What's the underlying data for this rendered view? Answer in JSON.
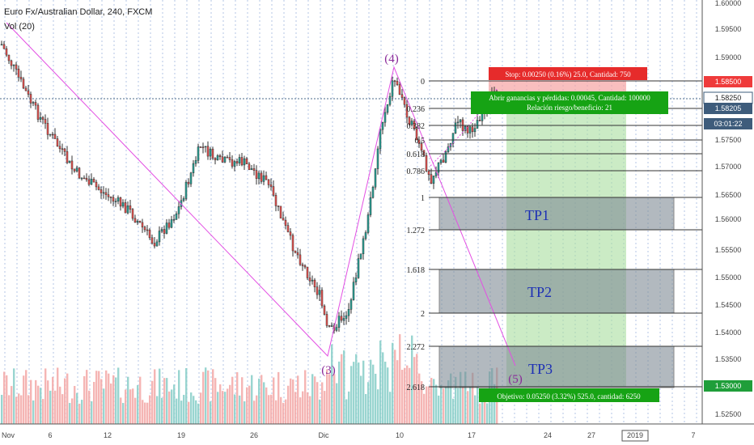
{
  "header": {
    "symbol": "Euro Fx/Australian Dollar, 240, FXCM",
    "volume_label": "Vol (20)"
  },
  "chart_data": {
    "type": "candlestick",
    "title": "Euro Fx/Australian Dollar, 240, FXCM",
    "y_axis": {
      "range": [
        1.52,
        1.6
      ],
      "ticks": [
        "1.60000",
        "1.59500",
        "1.59000",
        "1.58000",
        "1.57500",
        "1.57000",
        "1.56500",
        "1.56000",
        "1.55500",
        "1.55000",
        "1.54500",
        "1.54000",
        "1.53500",
        "1.52500"
      ]
    },
    "x_axis": {
      "ticks": [
        "Nov",
        "6",
        "12",
        "19",
        "26",
        "Dic",
        "10",
        "17",
        "24",
        "27",
        "2019",
        "7"
      ]
    },
    "price_tags": [
      {
        "value": "1.58500",
        "color": "#ef3b3b"
      },
      {
        "value": "1.58250",
        "color": "#ffffff"
      },
      {
        "value": "1.58205",
        "color": "#3e5c7b"
      },
      {
        "value": "03:01:22",
        "color": "#3e5c7b"
      },
      {
        "value": "1.53000",
        "color": "#1f9e3a"
      }
    ],
    "fib_levels": [
      "0",
      "0.236",
      "0.382",
      "0.5",
      "0.618",
      "0.786",
      "1",
      "1.272",
      "1.618",
      "2",
      "2.272",
      "2.618"
    ],
    "wave_labels": [
      "(3)",
      "(4)",
      "(5)"
    ],
    "targets": [
      "TP1",
      "TP2",
      "TP3"
    ],
    "position": {
      "stop": "Stop: 0.00250 (0.16%) 25.0, Cantidad: 750",
      "pnl": "Abrir ganancias y pérdidas: 0.00045, Cantidad: 100000",
      "ratio": "Relación riesgo/beneficio: 21",
      "target": "Objetivo: 0.05250 (3.32%) 525.0, cantidad: 6250"
    }
  }
}
